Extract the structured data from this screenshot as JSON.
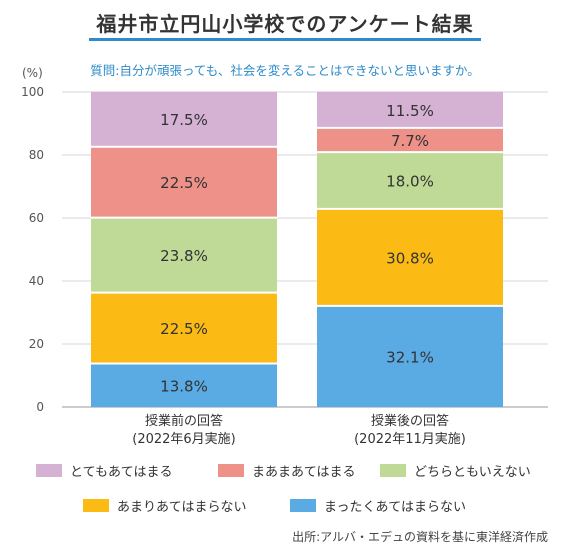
{
  "title": "福井市立円山小学校でのアンケート結果",
  "question": "質問:自分が頑張っても、社会を変えることはできないと思いますか。",
  "unit": "(%)",
  "source": "出所:アルバ・エデュの資料を基に東洋経済作成",
  "chart_data": {
    "type": "bar",
    "stacked": true,
    "ylim": [
      0,
      100
    ],
    "yticks": [
      0,
      20,
      40,
      60,
      80,
      100
    ],
    "categories": [
      [
        "授業前の回答",
        "(2022年6月実施)"
      ],
      [
        "授業後の回答",
        "(2022年11月実施)"
      ]
    ],
    "series": [
      {
        "name": "まったくあてはまらない",
        "color": "#5aaae4",
        "values": [
          13.8,
          32.1
        ],
        "labels": [
          "13.8%",
          "32.1%"
        ]
      },
      {
        "name": "あまりあてはまらない",
        "color": "#fbbb14",
        "values": [
          22.5,
          30.8
        ],
        "labels": [
          "22.5%",
          "30.8%"
        ]
      },
      {
        "name": "どちらともいえない",
        "color": "#bfda96",
        "values": [
          23.8,
          18.0
        ],
        "labels": [
          "23.8%",
          "18.0%"
        ]
      },
      {
        "name": "まあまあてはまる",
        "color": "#ee9189",
        "values": [
          22.5,
          7.7
        ],
        "labels": [
          "22.5%",
          "7.7%"
        ]
      },
      {
        "name": "とてもあてはまる",
        "color": "#d5b1d4",
        "values": [
          17.5,
          11.5
        ],
        "labels": [
          "17.5%",
          "11.5%"
        ]
      }
    ],
    "legend_order": [
      4,
      3,
      2,
      1,
      0
    ],
    "grid": true,
    "legend_position": "bottom"
  }
}
